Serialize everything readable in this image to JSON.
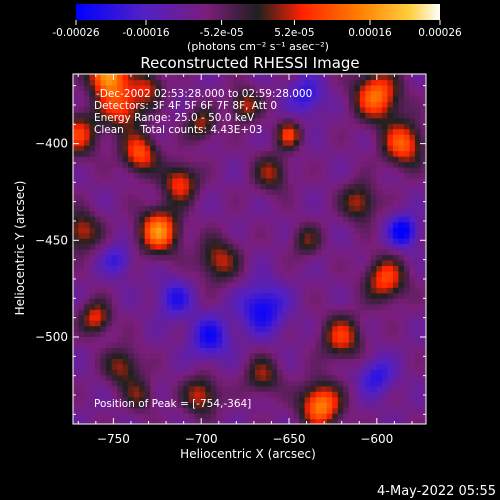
{
  "colorbar": {
    "ticks": [
      "-0.00026",
      "-0.00016",
      "-5.2e-05",
      "5.2e-05",
      "0.00016",
      "0.00026"
    ],
    "tick_values": [
      -0.00026,
      -0.00016,
      -5.2e-05,
      5.2e-05,
      0.00016,
      0.00026
    ],
    "units_line": "(photons cm⁻² s⁻¹ asec⁻²)"
  },
  "plot": {
    "title": "Reconstructed RHESSI Image",
    "xlabel": "Heliocentric X (arcsec)",
    "ylabel": "Heliocentric Y (arcsec)",
    "info_lines": [
      "   -Dec-2002 02:53:28.000 to 02:59:28.000",
      "Detectors: 3F 4F 5F 6F 7F 8F, Att 0",
      "Energy Range: 25.0 - 50.0 keV",
      "Clean     Total counts: 4.43E+03"
    ],
    "peak_label": "Position of Peak = [-754,-364]"
  },
  "footer": {
    "date_stamp": "4-May-2022 05:55"
  },
  "chart_data": {
    "type": "heatmap",
    "title": "Reconstructed RHESSI Image",
    "xlabel": "Heliocentric X (arcsec)",
    "ylabel": "Heliocentric Y (arcsec)",
    "xlim": [
      -773,
      -572
    ],
    "ylim": [
      -545,
      -364
    ],
    "x_ticks": [
      -750,
      -700,
      -650,
      -600
    ],
    "x_tick_labels": [
      "−750",
      "−700",
      "−650",
      "−600"
    ],
    "y_ticks": [
      -400,
      -450,
      -500
    ],
    "y_tick_labels": [
      "−400",
      "−450",
      "−500"
    ],
    "value_range": [
      -0.00026,
      0.00026
    ],
    "colormap": [
      "#0000ff",
      "#5020c8",
      "#7a1e7a",
      "#202020",
      "#ff2000",
      "#ff8000",
      "#ffd040",
      "#ffffff"
    ],
    "peak_position": [
      -754,
      -364
    ],
    "blobs": [
      {
        "x": -754,
        "y": -364,
        "amp": 0.00026,
        "sigma": 7
      },
      {
        "x": -745,
        "y": -380,
        "amp": 0.00018,
        "sigma": 9
      },
      {
        "x": -770,
        "y": -395,
        "amp": 0.00016,
        "sigma": 8
      },
      {
        "x": -735,
        "y": -405,
        "amp": 0.00019,
        "sigma": 7
      },
      {
        "x": -724,
        "y": -445,
        "amp": 0.00024,
        "sigma": 8
      },
      {
        "x": -712,
        "y": -420,
        "amp": 0.00017,
        "sigma": 7
      },
      {
        "x": -768,
        "y": -445,
        "amp": 0.00015,
        "sigma": 7
      },
      {
        "x": -700,
        "y": -390,
        "amp": 0.00013,
        "sigma": 6
      },
      {
        "x": -690,
        "y": -460,
        "amp": 0.00014,
        "sigma": 8
      },
      {
        "x": -660,
        "y": -415,
        "amp": 0.00012,
        "sigma": 7
      },
      {
        "x": -640,
        "y": -450,
        "amp": 0.0001,
        "sigma": 6
      },
      {
        "x": -600,
        "y": -375,
        "amp": 0.00022,
        "sigma": 9
      },
      {
        "x": -585,
        "y": -400,
        "amp": 0.0002,
        "sigma": 8
      },
      {
        "x": -610,
        "y": -430,
        "amp": 0.00014,
        "sigma": 7
      },
      {
        "x": -595,
        "y": -470,
        "amp": 0.00018,
        "sigma": 8
      },
      {
        "x": -620,
        "y": -500,
        "amp": 0.00016,
        "sigma": 8
      },
      {
        "x": -632,
        "y": -535,
        "amp": 0.00024,
        "sigma": 8
      },
      {
        "x": -665,
        "y": -520,
        "amp": 0.00012,
        "sigma": 7
      },
      {
        "x": -700,
        "y": -530,
        "amp": 0.00015,
        "sigma": 7
      },
      {
        "x": -745,
        "y": -515,
        "amp": 0.00013,
        "sigma": 7
      },
      {
        "x": -760,
        "y": -490,
        "amp": 0.00016,
        "sigma": 6
      },
      {
        "x": -665,
        "y": -485,
        "amp": -0.00016,
        "sigma": 9
      },
      {
        "x": -695,
        "y": -500,
        "amp": -0.00014,
        "sigma": 8
      },
      {
        "x": -715,
        "y": -480,
        "amp": -0.00012,
        "sigma": 7
      },
      {
        "x": -585,
        "y": -445,
        "amp": -0.00018,
        "sigma": 6
      },
      {
        "x": -640,
        "y": -375,
        "amp": -0.00012,
        "sigma": 7
      },
      {
        "x": -748,
        "y": -460,
        "amp": -0.0001,
        "sigma": 6
      },
      {
        "x": -600,
        "y": -520,
        "amp": -0.00012,
        "sigma": 7
      },
      {
        "x": -730,
        "y": -370,
        "amp": 0.00012,
        "sigma": 6
      },
      {
        "x": -675,
        "y": -380,
        "amp": 0.00014,
        "sigma": 6
      },
      {
        "x": -650,
        "y": -395,
        "amp": 0.00016,
        "sigma": 5
      },
      {
        "x": -735,
        "y": -530,
        "amp": 0.0001,
        "sigma": 6
      }
    ]
  }
}
